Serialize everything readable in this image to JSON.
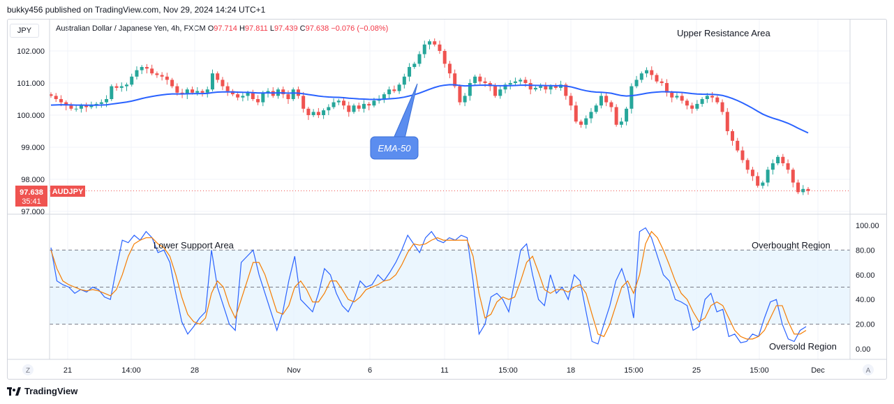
{
  "header": {
    "publisher": "bukky456 published on TradingView.com, Nov 29, 2024 14:24 UTC+1"
  },
  "legend": {
    "currency": "JPY",
    "title": "Australian Dollar / Japanese Yen, 4h, FXCM",
    "o_label": "O",
    "o_value": "97.714",
    "h_label": "H",
    "h_value": "97.811",
    "l_label": "L",
    "l_value": "97.439",
    "c_label": "C",
    "c_value": "97.638",
    "change": "−0.076 (−0.08%)"
  },
  "annotations": {
    "upper_resistance": "Upper Resistance Area",
    "ema_callout": "EMA-50",
    "lower_support": "Lower Support Area",
    "overbought": "Overbought Region",
    "oversold": "Oversold Region"
  },
  "price_tag": {
    "value": "97.638",
    "symbol": "AUDJPY",
    "countdown": "35:41"
  },
  "footer": {
    "brand": "TradingView"
  },
  "axis_buttons": {
    "left": "Z",
    "right": "A"
  },
  "colors": {
    "up": "#26a69a",
    "down": "#ef5350",
    "ema": "#2962ff",
    "stoch_k": "#2962ff",
    "stoch_d": "#f57c00",
    "band_fill": "#e3f2fd"
  },
  "chart_data": [
    {
      "type": "candlestick",
      "title": "Australian Dollar / Japanese Yen, 4h, FXCM",
      "x_tick_labels": [
        "21",
        "14:00",
        "28",
        "Nov",
        "6",
        "11",
        "15:00",
        "18",
        "15:00",
        "25",
        "15:00",
        "Dec"
      ],
      "y_tick_labels": [
        "102.000",
        "101.000",
        "100.000",
        "99.000",
        "98.000",
        "97.000"
      ],
      "ylim": [
        97.0,
        102.5
      ],
      "close": [
        100.6,
        100.5,
        100.4,
        100.3,
        100.2,
        100.2,
        100.3,
        100.25,
        100.3,
        100.35,
        100.4,
        100.5,
        100.9,
        100.85,
        100.9,
        100.95,
        101.2,
        101.4,
        101.5,
        101.45,
        101.3,
        101.25,
        101.2,
        101.1,
        100.9,
        100.7,
        100.65,
        100.8,
        100.7,
        100.75,
        100.7,
        100.8,
        101.3,
        101.1,
        100.9,
        100.75,
        100.65,
        100.55,
        100.6,
        100.7,
        100.5,
        100.4,
        100.7,
        100.75,
        100.6,
        100.8,
        100.65,
        100.5,
        100.8,
        100.6,
        100.2,
        100.0,
        100.1,
        100.0,
        100.15,
        100.25,
        100.4,
        100.45,
        100.3,
        100.1,
        100.3,
        100.2,
        100.35,
        100.3,
        100.45,
        100.5,
        100.65,
        100.8,
        100.75,
        100.95,
        101.2,
        101.5,
        101.6,
        101.9,
        102.2,
        102.3,
        102.2,
        102.0,
        101.6,
        101.3,
        100.9,
        100.4,
        100.6,
        101.0,
        101.2,
        101.05,
        101.0,
        100.9,
        100.6,
        100.8,
        100.95,
        101.0,
        101.05,
        101.1,
        101.0,
        100.8,
        100.85,
        100.9,
        100.8,
        100.9,
        100.85,
        100.95,
        100.6,
        100.3,
        99.8,
        99.7,
        99.9,
        100.1,
        100.3,
        100.6,
        100.4,
        100.25,
        99.7,
        99.8,
        100.2,
        100.9,
        101.1,
        101.3,
        101.4,
        101.25,
        101.05,
        101.0,
        100.7,
        100.55,
        100.6,
        100.45,
        100.3,
        100.2,
        100.35,
        100.5,
        100.6,
        100.55,
        100.4,
        100.1,
        99.5,
        99.2,
        98.9,
        98.6,
        98.3,
        98.1,
        97.8,
        97.9,
        98.3,
        98.5,
        98.7,
        98.5,
        98.3,
        97.9,
        97.6,
        97.7,
        97.64
      ],
      "ema_50_right_end": 99.4,
      "ema_50_peak": 101.0
    },
    {
      "type": "line",
      "title": "",
      "y_tick_labels": [
        "100.00",
        "80.00",
        "60.00",
        "40.00",
        "20.00",
        "0.00"
      ],
      "ylim": [
        0,
        100
      ],
      "bands": {
        "upper": 80,
        "middle": 50,
        "lower": 20
      },
      "series": [
        {
          "values": [
            82,
            55,
            52,
            50,
            45,
            48,
            46,
            50,
            48,
            42,
            40,
            65,
            88,
            86,
            92,
            88,
            95,
            90,
            78,
            80,
            70,
            45,
            22,
            12,
            18,
            25,
            30,
            80,
            50,
            35,
            20,
            15,
            70,
            75,
            80,
            60,
            45,
            30,
            15,
            30,
            55,
            75,
            40,
            35,
            30,
            45,
            65,
            60,
            45,
            35,
            30,
            40,
            55,
            50,
            52,
            60,
            55,
            62,
            70,
            80,
            92,
            85,
            78,
            90,
            95,
            88,
            86,
            90,
            88,
            92,
            90,
            55,
            12,
            20,
            42,
            45,
            40,
            30,
            55,
            80,
            85,
            60,
            40,
            35,
            60,
            45,
            50,
            40,
            60,
            55,
            30,
            6,
            4,
            20,
            35,
            55,
            65,
            50,
            25,
            95,
            98,
            90,
            75,
            60,
            55,
            40,
            38,
            35,
            15,
            18,
            40,
            45,
            30,
            32,
            10,
            12,
            5,
            6,
            12,
            10,
            25,
            38,
            40,
            20,
            8,
            6,
            15,
            18
          ]
        },
        {
          "values": [
            80,
            65,
            55,
            52,
            50,
            48,
            47,
            48,
            47,
            45,
            43,
            48,
            60,
            75,
            85,
            88,
            90,
            90,
            85,
            82,
            75,
            60,
            42,
            28,
            22,
            20,
            25,
            45,
            55,
            50,
            35,
            25,
            40,
            55,
            70,
            70,
            60,
            45,
            30,
            28,
            35,
            50,
            55,
            48,
            38,
            38,
            45,
            55,
            55,
            48,
            40,
            38,
            42,
            48,
            50,
            52,
            55,
            56,
            60,
            68,
            78,
            85,
            84,
            85,
            88,
            90,
            88,
            88,
            88,
            88,
            88,
            75,
            45,
            25,
            28,
            38,
            42,
            40,
            42,
            55,
            70,
            75,
            62,
            48,
            45,
            48,
            48,
            46,
            50,
            52,
            45,
            28,
            12,
            10,
            20,
            35,
            50,
            55,
            45,
            60,
            85,
            95,
            90,
            80,
            68,
            55,
            45,
            40,
            30,
            22,
            25,
            35,
            38,
            35,
            25,
            15,
            10,
            8,
            8,
            10,
            15,
            25,
            35,
            35,
            22,
            12,
            12,
            15
          ]
        }
      ]
    }
  ]
}
